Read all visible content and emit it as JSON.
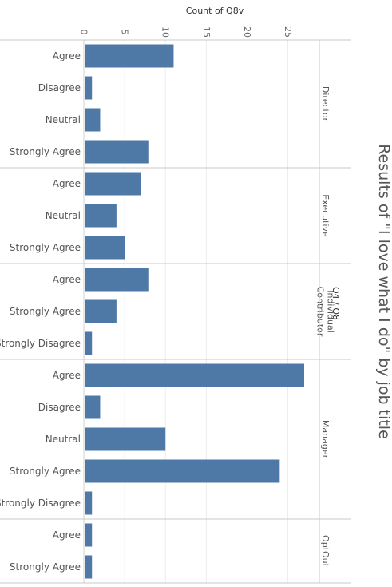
{
  "title": "Results of \"I love what I do\" by job title",
  "chart_data": {
    "type": "bar",
    "orientation": "horizontal",
    "title": "Results of \"I love what I do\" by job title",
    "x_axis_title": "Count of Q8v",
    "facet_header": "Q4 / Q8",
    "x_ticks": [
      "0",
      "5",
      "10",
      "15",
      "20",
      "25"
    ],
    "xlim": [
      0,
      27.5
    ],
    "grid": true,
    "bar_color": "#4e79a7",
    "groups": [
      {
        "name": "Director",
        "label_lines": [
          "Director"
        ],
        "categories": [
          "Agree",
          "Disagree",
          "Neutral",
          "Strongly Agree"
        ],
        "values": [
          11,
          1,
          2,
          8
        ]
      },
      {
        "name": "Executive",
        "label_lines": [
          "Executive"
        ],
        "categories": [
          "Agree",
          "Neutral",
          "Strongly Agree"
        ],
        "values": [
          7,
          4,
          5
        ]
      },
      {
        "name": "Individual Contributor",
        "label_lines": [
          "Individual",
          "Contributor"
        ],
        "categories": [
          "Agree",
          "Strongly Agree",
          "Strongly Disagree"
        ],
        "values": [
          8,
          4,
          1
        ]
      },
      {
        "name": "Manager",
        "label_lines": [
          "Manager"
        ],
        "categories": [
          "Agree",
          "Disagree",
          "Neutral",
          "Strongly Agree",
          "Strongly Disagree"
        ],
        "values": [
          27,
          2,
          10,
          24,
          1
        ]
      },
      {
        "name": "OptOut",
        "label_lines": [
          "OptOut"
        ],
        "categories": [
          "Agree",
          "Strongly Agree"
        ],
        "values": [
          1,
          1
        ]
      }
    ]
  }
}
